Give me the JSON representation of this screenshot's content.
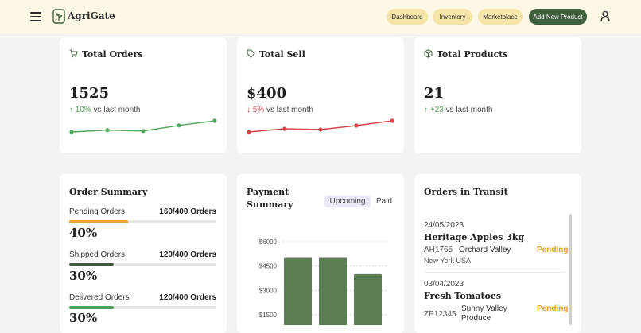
{
  "header": {
    "brand": "AgriGate",
    "nav": [
      {
        "label": "Dashboard"
      },
      {
        "label": "Inventory"
      },
      {
        "label": "Marketplace"
      }
    ],
    "cta_label": "Add New Product",
    "colors": {
      "bar": "#fdf8e6",
      "pill": "#f6e4a8",
      "cta": "#3f5e3c"
    }
  },
  "stats": [
    {
      "title": "Total Orders",
      "icon": "cart-icon",
      "value": "1525",
      "change": "10%",
      "direction": "up",
      "suffix": "vs last month",
      "spark": [
        1,
        2,
        1.5,
        4.5,
        7
      ],
      "color": "#4fa55a"
    },
    {
      "title": "Total Sell",
      "icon": "tag-icon",
      "value": "$400",
      "change": "5%",
      "direction": "down",
      "suffix": "vs last month",
      "spark": [
        1,
        3,
        2.5,
        5,
        8
      ],
      "color": "#d64545"
    },
    {
      "title": "Total Products",
      "icon": "box-icon",
      "value": "21",
      "change": "+23",
      "direction": "up",
      "suffix": "vs last month"
    }
  ],
  "order_summary": {
    "title": "Order Summary",
    "rows": [
      {
        "label": "Pending Orders",
        "value": "160/400 Orders",
        "percent": "40%",
        "fraction": 0.4,
        "color": "#e9a33a"
      },
      {
        "label": "Shipped Orders",
        "value": "120/400 Orders",
        "percent": "30%",
        "fraction": 0.3,
        "color": "#3f5e3c"
      },
      {
        "label": "Delivered Orders",
        "value": "120/400 Orders",
        "percent": "30%",
        "fraction": 0.3,
        "color": "#4fa55a"
      }
    ]
  },
  "payment_summary": {
    "title_line1": "Payment",
    "title_line2": "Summary",
    "tabs": [
      "Upcoming",
      "Paid"
    ],
    "active_tab": "Upcoming"
  },
  "chart_data": {
    "type": "bar",
    "title": "Payment Summary",
    "y_ticks": [
      "$6000",
      "$4500",
      "$3000",
      "$1500"
    ],
    "ylim": [
      1500,
      6000
    ],
    "values": [
      5000,
      5000,
      4000
    ],
    "color": "#5a7d54",
    "grid": true
  },
  "transit": {
    "title": "Orders in Transit",
    "items": [
      {
        "date": "24/05/2023",
        "name": "Heritage Apples 3kg",
        "id": "AH1765",
        "from": "Orchard Valley",
        "to": "New York USA",
        "status": "Pending"
      },
      {
        "date": "03/04/2023",
        "name": "Fresh Tomatoes",
        "id": "ZP12345",
        "from": "Sunny Valley Produce",
        "to": "",
        "status": "Pending"
      }
    ]
  }
}
